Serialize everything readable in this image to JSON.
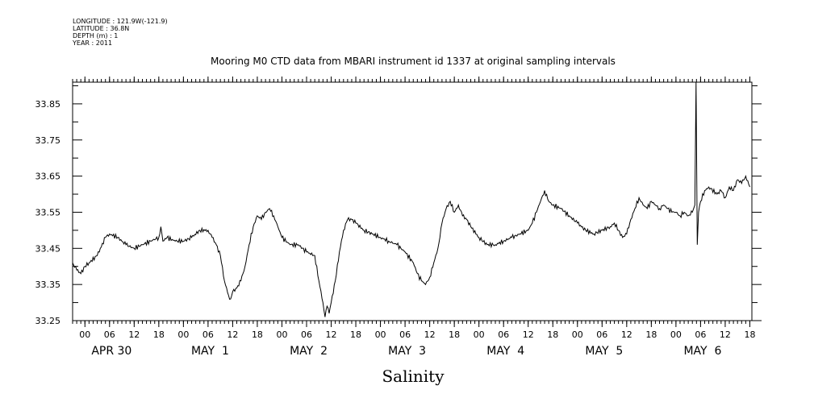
{
  "meta": {
    "longitude": "LONGITUDE : 121.9W(-121.9)",
    "latitude": "LATITUDE : 36.8N",
    "depth": "DEPTH (m) : 1",
    "year": "YEAR : 2011"
  },
  "chart_data": {
    "type": "line",
    "title": "Mooring M0 CTD data from MBARI instrument id 1337 at original sampling intervals",
    "xlabel": "Salinity",
    "ylabel": "",
    "ylim": [
      33.25,
      33.91
    ],
    "xlim_hours": [
      -3,
      162.5
    ],
    "yticks": [
      "33.25",
      "33.35",
      "33.45",
      "33.55",
      "33.65",
      "33.75",
      "33.85"
    ],
    "hour_tick_labels": [
      "00",
      "06",
      "12",
      "18"
    ],
    "day_labels": [
      "APR 30",
      "MAY  1",
      "MAY  2",
      "MAY  3",
      "MAY  4",
      "MAY  5",
      "MAY  6"
    ],
    "grid": false,
    "series": [
      {
        "x_hours": [
          -3,
          -2,
          -1,
          0,
          1,
          3,
          5,
          6,
          8,
          10,
          12,
          14,
          16,
          18,
          18.5,
          19,
          20,
          22,
          24,
          26,
          28,
          30,
          31,
          32,
          33,
          34,
          35,
          35.5,
          36,
          37,
          38,
          39,
          40,
          41,
          42,
          43,
          44,
          45,
          46,
          47,
          48,
          50,
          52,
          54,
          56,
          57,
          58,
          58.5,
          59,
          59.5,
          60,
          61,
          62,
          63,
          64,
          65,
          66,
          68,
          70,
          72,
          74,
          76,
          78,
          80,
          81,
          82,
          83,
          84,
          85,
          86,
          86.5,
          87,
          88,
          89,
          90,
          91,
          92,
          93,
          94,
          96,
          98,
          100,
          102,
          104,
          106,
          108,
          109,
          110,
          111,
          112,
          113,
          114,
          116,
          118,
          120,
          122,
          124,
          126,
          128,
          129,
          130,
          131,
          132,
          133,
          134,
          135,
          136,
          137,
          138,
          139,
          140,
          141,
          142,
          143,
          144,
          145,
          146,
          147,
          148,
          148.6,
          148.9,
          149.2,
          149.5,
          150,
          151,
          152,
          154,
          155,
          156,
          157,
          158,
          159,
          160,
          161,
          162
        ],
        "values": [
          33.41,
          33.39,
          33.38,
          33.4,
          33.41,
          33.43,
          33.48,
          33.49,
          33.48,
          33.46,
          33.45,
          33.46,
          33.47,
          33.48,
          33.51,
          33.47,
          33.48,
          33.47,
          33.47,
          33.48,
          33.5,
          33.5,
          33.48,
          33.46,
          33.43,
          33.36,
          33.32,
          33.31,
          33.33,
          33.34,
          33.36,
          33.4,
          33.46,
          33.51,
          33.54,
          33.53,
          33.55,
          33.56,
          33.54,
          33.51,
          33.48,
          33.46,
          33.46,
          33.44,
          33.43,
          33.36,
          33.3,
          33.26,
          33.29,
          33.27,
          33.3,
          33.36,
          33.44,
          33.5,
          33.53,
          33.53,
          33.52,
          33.5,
          33.49,
          33.48,
          33.47,
          33.46,
          33.44,
          33.41,
          33.38,
          33.36,
          33.35,
          33.37,
          33.41,
          33.45,
          33.48,
          33.52,
          33.56,
          33.58,
          33.55,
          33.57,
          33.54,
          33.53,
          33.51,
          33.48,
          33.46,
          33.46,
          33.47,
          33.48,
          33.49,
          33.5,
          33.52,
          33.55,
          33.58,
          33.61,
          33.58,
          33.57,
          33.56,
          33.54,
          33.52,
          33.5,
          33.49,
          33.5,
          33.51,
          33.52,
          33.5,
          33.48,
          33.49,
          33.53,
          33.56,
          33.59,
          33.57,
          33.56,
          33.58,
          33.57,
          33.56,
          33.57,
          33.56,
          33.55,
          33.55,
          33.54,
          33.55,
          33.54,
          33.55,
          33.57,
          33.91,
          33.46,
          33.55,
          33.58,
          33.61,
          33.62,
          33.6,
          33.61,
          33.59,
          33.62,
          33.61,
          33.64,
          33.63,
          33.65,
          33.62
        ]
      }
    ]
  }
}
